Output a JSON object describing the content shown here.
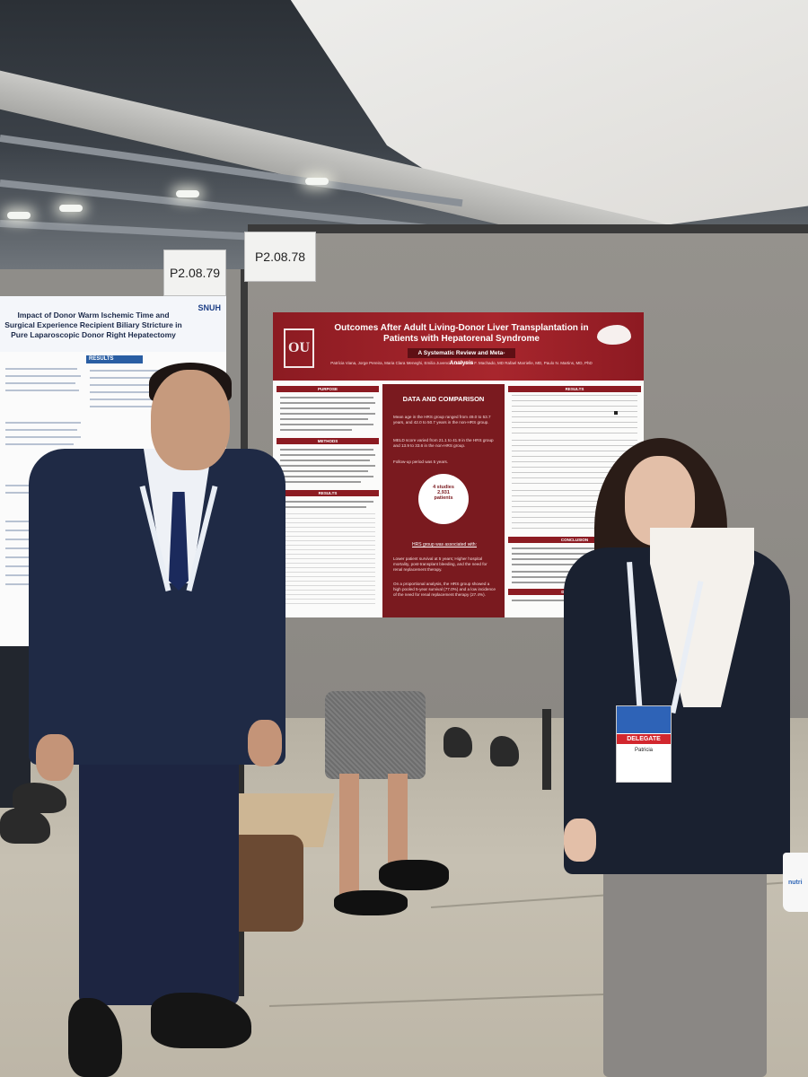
{
  "labels": {
    "left_board": "P2.08.79",
    "right_board": "P2.08.78"
  },
  "left_poster": {
    "title": "Impact of Donor Warm Ischemic Time and Surgical Experience Recipient Biliary Stricture in Pure Laparoscopic Donor Right Hepatectomy",
    "logo": "SNUH",
    "results_label": "RESULTS"
  },
  "main_poster": {
    "logo": "OU",
    "title": "Outcomes After Adult Living-Donor Liver Transplantation in Patients with Hepatorenal Syndrome",
    "subtitle": "A Systematic Review and Meta-Analysis",
    "authors": "Patrícia Viana, Jorge Pereira, Maria Clara Meneghi, Emilia Juvencio, Guilherme F. Machado, MD Rafael Marrielle, MD, Paulo N. Martins, MD, PhD",
    "sections": {
      "purpose": "PURPOSE",
      "methods": "METHODS",
      "results_left": "RESULTS",
      "results_right": "RESULTS",
      "conclusion": "CONCLUSION",
      "disclosure": "DISCLOSURE"
    },
    "center": {
      "heading": "DATA AND COMPARISON",
      "age_text": "Mean age in the HRS group ranged from 49.0 to 53.7 years, and 42.0 to 50.7 years in the non-HRS group.",
      "meld_text": "MELD score varied from 21.1 to 41.9 in the HRS group and 13.9 to 33.6 in the non-HRS group.",
      "followup_text": "Follow-up period was 5 years.",
      "circle_line1": "4 studies",
      "circle_line2": "2,931",
      "circle_line3": "patients",
      "hrs_label": "HRS group was associated with:",
      "bullets": "Lower patient survival at 5 years; Higher hospital mortality, post-transplant bleeding, and the need for renal replacement therapy.",
      "proportional": "On a proportional analysis, the HRS group showed a high pooled 5-year survival (77.0%) and a low incidence of the need for renal replacement therapy (27.4%)."
    }
  },
  "badge": {
    "label": "DELEGATE",
    "name": "Patricia"
  },
  "cup": {
    "text": "nutri"
  }
}
